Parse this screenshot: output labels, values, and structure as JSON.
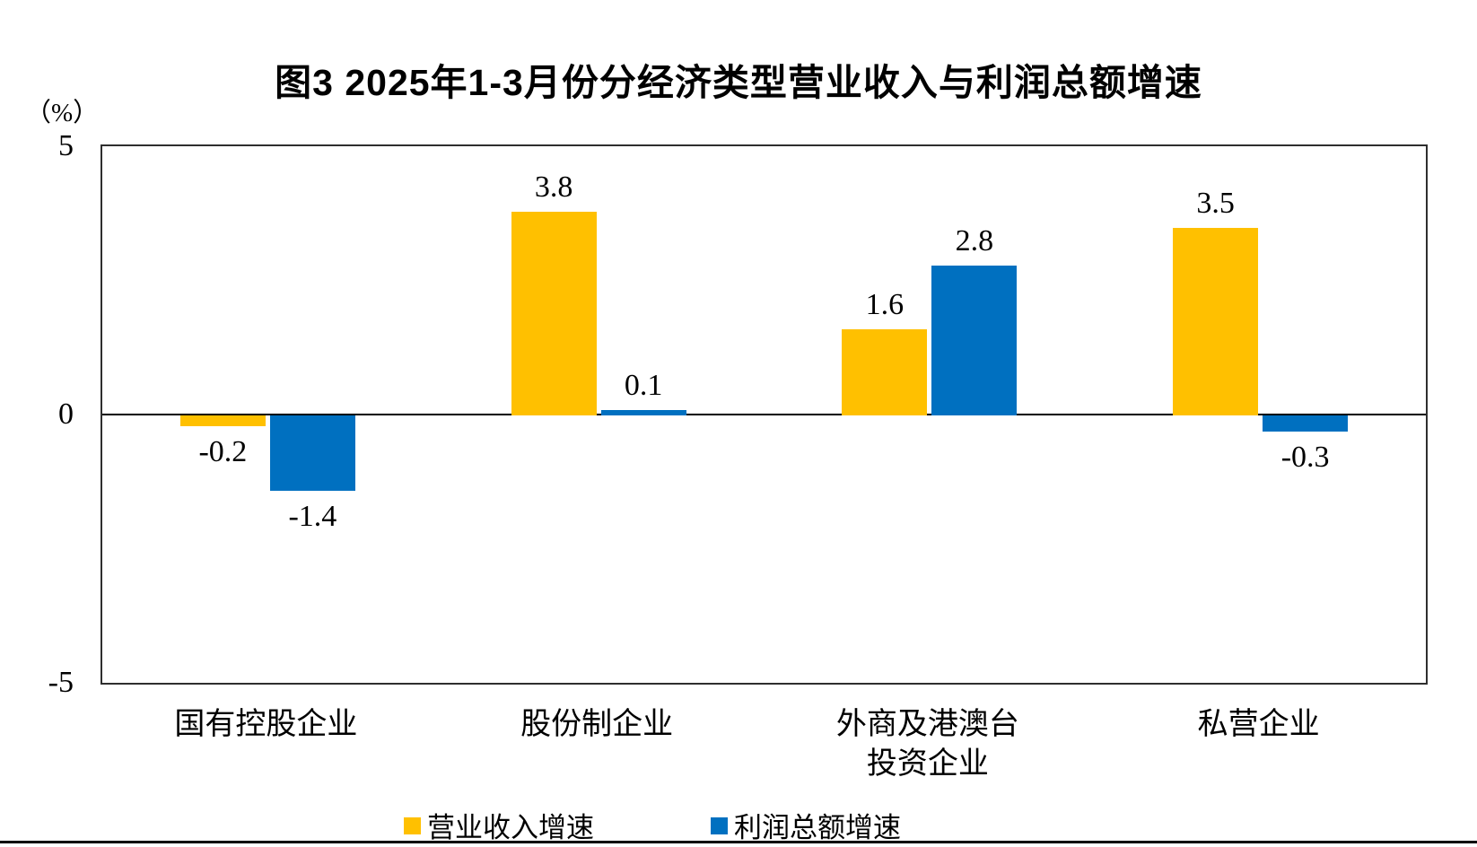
{
  "title": "图3 2025年1-3月份分经济类型营业收入与利润总额增速",
  "y_axis": {
    "unit_label": "（%）",
    "tick_labels": [
      "5",
      "0",
      "-5"
    ]
  },
  "chart_data": {
    "type": "bar",
    "title": "图3 2025年1-3月份分经济类型营业收入与利润总额增速",
    "categories": [
      "国有控股企业",
      "股份制企业",
      "外商及港澳台\n投资企业",
      "私营企业"
    ],
    "series": [
      {
        "name": "营业收入增速",
        "color": "#FFC000",
        "values": [
          -0.2,
          3.8,
          1.6,
          3.5
        ]
      },
      {
        "name": "利润总额增速",
        "color": "#0070C0",
        "values": [
          -1.4,
          0.1,
          2.8,
          -0.3
        ]
      }
    ],
    "ylabel": "（%）",
    "ylim": [
      -5,
      5
    ],
    "yticks": [
      5,
      0,
      -5
    ],
    "grid": false,
    "zero_line": true,
    "value_labels_decimals": 1,
    "legend_position": "bottom"
  }
}
